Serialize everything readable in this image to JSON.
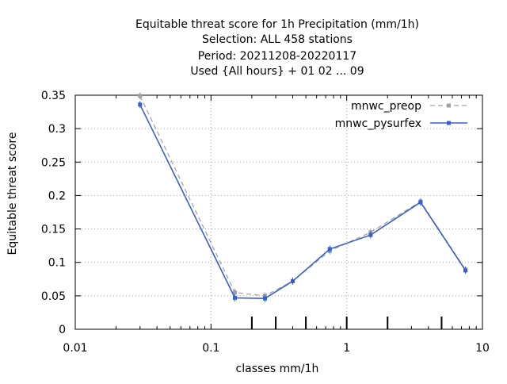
{
  "chart_data": {
    "type": "line",
    "title_lines": [
      "Equitable threat score  for 1h Precipitation (mm/1h)",
      "Selection: ALL    458 stations",
      "Period: 20211208-20220117",
      "Used {All hours} + 01 02 ... 09"
    ],
    "xlabel": "classes mm/1h",
    "ylabel": "Equitable threat score",
    "x_scale": "log",
    "xlim": [
      0.01,
      10
    ],
    "ylim": [
      0,
      0.35
    ],
    "x_ticks": [
      {
        "value": 0.01,
        "label": "0.01"
      },
      {
        "value": 0.1,
        "label": "0.1"
      },
      {
        "value": 1,
        "label": "1"
      },
      {
        "value": 10,
        "label": "10"
      }
    ],
    "y_ticks": [
      {
        "value": 0,
        "label": "0"
      },
      {
        "value": 0.05,
        "label": "0.05"
      },
      {
        "value": 0.1,
        "label": "0.1"
      },
      {
        "value": 0.15,
        "label": "0.15"
      },
      {
        "value": 0.2,
        "label": "0.2"
      },
      {
        "value": 0.25,
        "label": "0.25"
      },
      {
        "value": 0.3,
        "label": "0.3"
      },
      {
        "value": 0.35,
        "label": "0.35"
      }
    ],
    "class_markers": [
      0.2,
      0.3,
      0.5,
      1,
      2,
      5
    ],
    "grid": true,
    "legend_position": "top-right",
    "series": [
      {
        "name": "mnwc_preop",
        "color": "#a0a0a0",
        "dashed": true,
        "x": [
          0.03,
          0.15,
          0.25,
          0.4,
          0.75,
          1.5,
          3.5,
          7.5
        ],
        "y": [
          0.349,
          0.055,
          0.05,
          0.072,
          0.117,
          0.145,
          0.191,
          0.089
        ]
      },
      {
        "name": "mnwc_pysurfex",
        "color": "#3a5fcd",
        "dashed": false,
        "x": [
          0.03,
          0.15,
          0.25,
          0.4,
          0.75,
          1.5,
          3.5,
          7.5
        ],
        "y": [
          0.336,
          0.047,
          0.046,
          0.072,
          0.12,
          0.141,
          0.19,
          0.088
        ]
      }
    ]
  }
}
